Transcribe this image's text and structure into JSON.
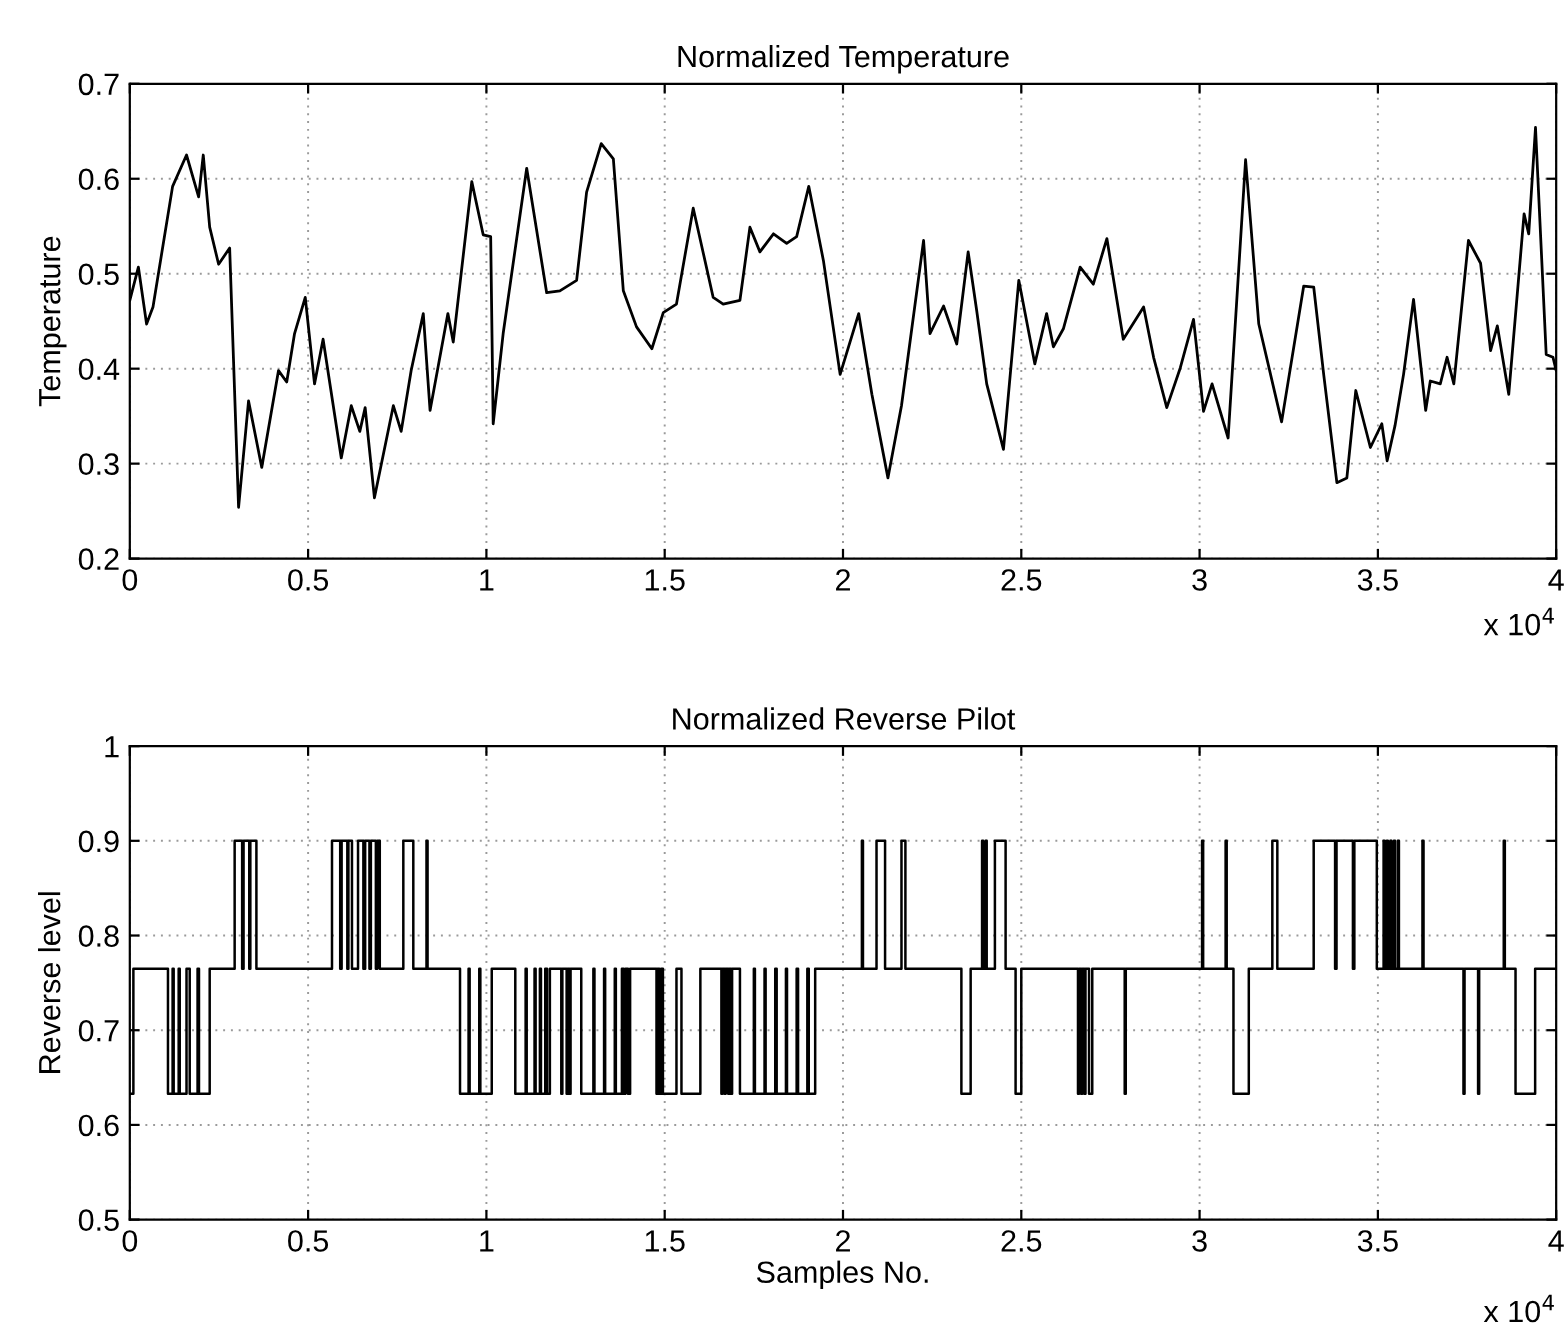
{
  "chart_data": [
    {
      "type": "line",
      "title": "Normalized Temperature",
      "ylabel": "Temperature",
      "xlim": [
        0,
        4
      ],
      "ylim": [
        0.2,
        0.7
      ],
      "xticks": [
        0,
        0.5,
        1,
        1.5,
        2,
        2.5,
        3,
        3.5,
        4
      ],
      "yticks": [
        0.2,
        0.3,
        0.4,
        0.5,
        0.6,
        0.7
      ],
      "grid": true,
      "annotations": [
        "x 10$^{4}$"
      ],
      "series": [
        {
          "color": "#000000",
          "x": [
            0,
            0.024,
            0.047,
            0.065,
            0.12,
            0.159,
            0.193,
            0.206,
            0.224,
            0.249,
            0.28,
            0.305,
            0.333,
            0.37,
            0.417,
            0.44,
            0.462,
            0.492,
            0.518,
            0.542,
            0.593,
            0.621,
            0.645,
            0.66,
            0.686,
            0.739,
            0.761,
            0.789,
            0.823,
            0.842,
            0.892,
            0.907,
            0.959,
            0.991,
            1.012,
            1.019,
            1.047,
            1.113,
            1.169,
            1.206,
            1.253,
            1.281,
            1.322,
            1.356,
            1.384,
            1.421,
            1.464,
            1.496,
            1.533,
            1.58,
            1.636,
            1.664,
            1.711,
            1.739,
            1.767,
            1.805,
            1.842,
            1.87,
            1.904,
            1.945,
            1.992,
            2.044,
            2.081,
            2.126,
            2.164,
            2.226,
            2.244,
            2.282,
            2.319,
            2.351,
            2.375,
            2.403,
            2.45,
            2.493,
            2.538,
            2.571,
            2.59,
            2.618,
            2.665,
            2.702,
            2.74,
            2.786,
            2.843,
            2.871,
            2.908,
            2.946,
            2.983,
            3.011,
            3.035,
            3.08,
            3.129,
            3.166,
            3.23,
            3.292,
            3.32,
            3.348,
            3.385,
            3.413,
            3.438,
            3.479,
            3.511,
            3.526,
            3.548,
            3.572,
            3.6,
            3.634,
            3.647,
            3.675,
            3.694,
            3.713,
            3.754,
            3.788,
            3.816,
            3.835,
            3.867,
            3.91,
            3.923,
            3.942,
            3.972,
            3.991,
            4.0
          ],
          "values": [
            0.472,
            0.507,
            0.447,
            0.465,
            0.592,
            0.625,
            0.581,
            0.625,
            0.549,
            0.51,
            0.527,
            0.254,
            0.366,
            0.296,
            0.398,
            0.386,
            0.437,
            0.475,
            0.384,
            0.431,
            0.306,
            0.361,
            0.334,
            0.359,
            0.264,
            0.361,
            0.334,
            0.398,
            0.458,
            0.356,
            0.458,
            0.428,
            0.597,
            0.541,
            0.539,
            0.342,
            0.437,
            0.611,
            0.48,
            0.482,
            0.493,
            0.586,
            0.637,
            0.621,
            0.482,
            0.444,
            0.421,
            0.459,
            0.468,
            0.569,
            0.475,
            0.468,
            0.472,
            0.549,
            0.523,
            0.542,
            0.532,
            0.539,
            0.592,
            0.514,
            0.394,
            0.458,
            0.373,
            0.285,
            0.361,
            0.535,
            0.437,
            0.466,
            0.426,
            0.523,
            0.461,
            0.384,
            0.315,
            0.493,
            0.405,
            0.458,
            0.423,
            0.442,
            0.507,
            0.489,
            0.537,
            0.431,
            0.465,
            0.412,
            0.359,
            0.401,
            0.452,
            0.355,
            0.384,
            0.327,
            0.62,
            0.447,
            0.344,
            0.487,
            0.486,
            0.394,
            0.28,
            0.285,
            0.377,
            0.317,
            0.342,
            0.303,
            0.34,
            0.394,
            0.473,
            0.356,
            0.387,
            0.384,
            0.412,
            0.384,
            0.535,
            0.511,
            0.419,
            0.445,
            0.373,
            0.563,
            0.542,
            0.654,
            0.415,
            0.412,
            0.398
          ]
        }
      ]
    },
    {
      "type": "step",
      "title": "Normalized Reverse Pilot",
      "ylabel": "Reverse level",
      "xlabel": "Samples No.",
      "xlim": [
        0,
        4
      ],
      "ylim": [
        0.5,
        1
      ],
      "xticks": [
        0,
        0.5,
        1,
        1.5,
        2,
        2.5,
        3,
        3.5,
        4
      ],
      "yticks": [
        0.5,
        0.6,
        0.7,
        0.8,
        0.9,
        1
      ],
      "grid": true,
      "annotations": [
        "x 10$^{4}$"
      ],
      "series": [
        {
          "color": "#000000",
          "x": [
            0,
            0.01,
            0.107,
            0.12,
            0.123,
            0.137,
            0.14,
            0.159,
            0.168,
            0.19,
            0.194,
            0.224,
            0.294,
            0.315,
            0.319,
            0.335,
            0.338,
            0.355,
            0.567,
            0.59,
            0.594,
            0.61,
            0.613,
            0.623,
            0.64,
            0.655,
            0.66,
            0.672,
            0.676,
            0.69,
            0.694,
            0.701,
            0.767,
            0.795,
            0.832,
            0.835,
            0.926,
            0.95,
            0.953,
            0.98,
            0.983,
            1.015,
            1.081,
            1.11,
            1.113,
            1.135,
            1.138,
            1.15,
            1.153,
            1.165,
            1.17,
            1.178,
            1.21,
            1.213,
            1.225,
            1.228,
            1.233,
            1.236,
            1.266,
            1.3,
            1.303,
            1.33,
            1.333,
            1.36,
            1.363,
            1.38,
            1.385,
            1.39,
            1.397,
            1.403,
            1.477,
            1.48,
            1.485,
            1.49,
            1.495,
            1.533,
            1.547,
            1.6,
            1.659,
            1.662,
            1.668,
            1.671,
            1.678,
            1.681,
            1.686,
            1.689,
            1.711,
            1.75,
            1.753,
            1.78,
            1.783,
            1.81,
            1.814,
            1.84,
            1.843,
            1.87,
            1.874,
            1.9,
            1.904,
            1.922,
            2.053,
            2.056,
            2.094,
            2.118,
            2.164,
            2.175,
            2.332,
            2.358,
            2.39,
            2.393,
            2.4,
            2.403,
            2.426,
            2.456,
            2.484,
            2.5,
            2.659,
            2.662,
            2.668,
            2.671,
            2.677,
            2.68,
            2.69,
            2.699,
            2.79,
            2.793,
            3.007,
            3.01,
            3.073,
            3.076,
            3.095,
            3.138,
            3.204,
            3.218,
            3.32,
            3.38,
            3.384,
            3.43,
            3.434,
            3.497,
            3.516,
            3.519,
            3.525,
            3.528,
            3.535,
            3.538,
            3.545,
            3.548,
            3.556,
            3.559,
            3.625,
            3.628,
            3.74,
            3.743,
            3.781,
            3.784,
            3.853,
            3.856,
            3.886,
            3.941,
            4.0
          ],
          "values": [
            0.633,
            0.765,
            0.633,
            0.765,
            0.633,
            0.765,
            0.633,
            0.765,
            0.633,
            0.765,
            0.633,
            0.765,
            0.9,
            0.765,
            0.9,
            0.765,
            0.9,
            0.765,
            0.9,
            0.765,
            0.9,
            0.765,
            0.9,
            0.765,
            0.9,
            0.765,
            0.9,
            0.765,
            0.9,
            0.765,
            0.9,
            0.765,
            0.9,
            0.765,
            0.9,
            0.765,
            0.633,
            0.765,
            0.633,
            0.765,
            0.633,
            0.765,
            0.633,
            0.765,
            0.633,
            0.765,
            0.633,
            0.765,
            0.633,
            0.765,
            0.633,
            0.765,
            0.633,
            0.765,
            0.633,
            0.765,
            0.633,
            0.765,
            0.633,
            0.765,
            0.633,
            0.765,
            0.633,
            0.765,
            0.633,
            0.765,
            0.633,
            0.765,
            0.633,
            0.765,
            0.633,
            0.765,
            0.633,
            0.765,
            0.633,
            0.765,
            0.633,
            0.765,
            0.633,
            0.765,
            0.633,
            0.765,
            0.633,
            0.765,
            0.633,
            0.765,
            0.633,
            0.765,
            0.633,
            0.765,
            0.633,
            0.765,
            0.633,
            0.765,
            0.633,
            0.765,
            0.633,
            0.765,
            0.633,
            0.765,
            0.9,
            0.765,
            0.9,
            0.765,
            0.9,
            0.765,
            0.633,
            0.765,
            0.9,
            0.765,
            0.9,
            0.765,
            0.9,
            0.765,
            0.633,
            0.765,
            0.633,
            0.765,
            0.633,
            0.765,
            0.633,
            0.765,
            0.633,
            0.765,
            0.633,
            0.765,
            0.9,
            0.765,
            0.9,
            0.765,
            0.633,
            0.765,
            0.9,
            0.765,
            0.9,
            0.765,
            0.9,
            0.765,
            0.9,
            0.765,
            0.9,
            0.765,
            0.9,
            0.765,
            0.9,
            0.765,
            0.9,
            0.765,
            0.9,
            0.765,
            0.9,
            0.765,
            0.633,
            0.765,
            0.633,
            0.765,
            0.9,
            0.765,
            0.633,
            0.765,
            0.765
          ]
        }
      ]
    }
  ]
}
